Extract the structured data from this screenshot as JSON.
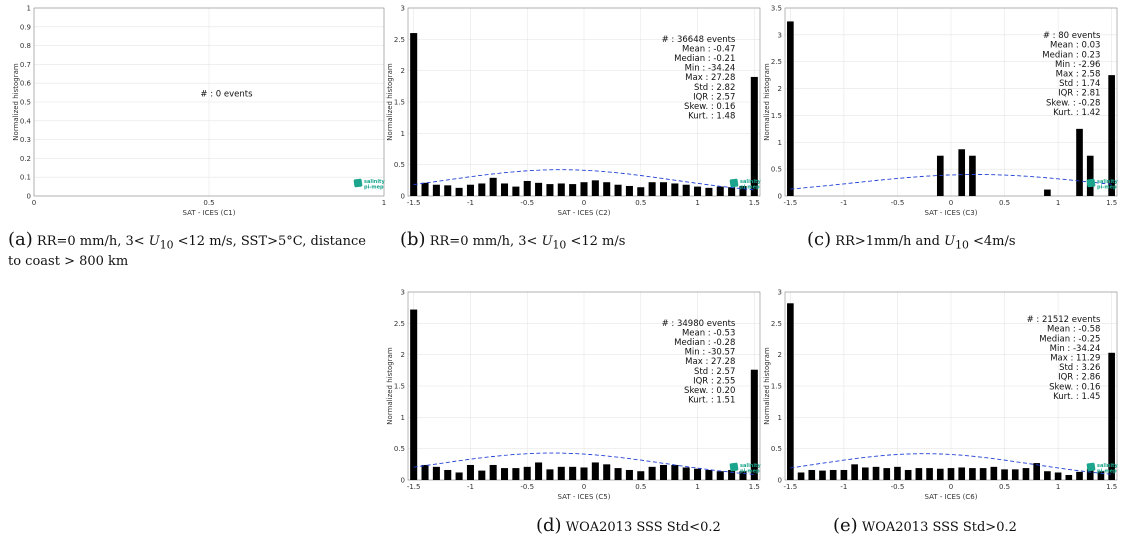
{
  "chart_data": [
    {
      "id": "C1",
      "type": "bar",
      "xlabel": "SAT - ICES (C1)",
      "ylabel": "Normalized histogram",
      "xlim": [
        0,
        1
      ],
      "ylim": [
        0,
        1
      ],
      "xticks": [
        0,
        0.5,
        1
      ],
      "xtick_labels": [
        "0",
        "0.5",
        "1"
      ],
      "yticks": [
        0,
        0.1,
        0.2,
        0.3,
        0.4,
        0.5,
        0.6,
        0.7,
        0.8,
        0.9,
        1
      ],
      "ytick_labels": [
        "0",
        "0.1",
        "0.2",
        "0.3",
        "0.4",
        "0.5",
        "0.6",
        "0.7",
        "0.8",
        "0.9",
        "1"
      ],
      "stats": [
        "#  : 0 events"
      ],
      "bars": [],
      "gauss": null,
      "logo_text": [
        "salinity",
        "pi-mep"
      ],
      "caption_tag": "(a)",
      "caption_text": "RR=0 mm/h, 3< U10 <12 m/s, SST>5°C, distance to coast > 800 km",
      "grid": true
    },
    {
      "id": "C2",
      "type": "bar",
      "xlabel": "SAT - ICES (C2)",
      "ylabel": "Normalized histogram",
      "xlim": [
        -1.55,
        1.55
      ],
      "ylim": [
        0,
        3
      ],
      "xticks": [
        -1.5,
        -1,
        -0.5,
        0,
        0.5,
        1,
        1.5
      ],
      "xtick_labels": [
        "-1.5",
        "-1",
        "-0.5",
        "0",
        "0.5",
        "1",
        "1.5"
      ],
      "yticks": [
        0,
        0.5,
        1,
        1.5,
        2,
        2.5,
        3
      ],
      "ytick_labels": [
        "0",
        "0.5",
        "1",
        "1.5",
        "2",
        "2.5",
        "3"
      ],
      "stats": [
        "#  : 36648 events",
        "Mean : -0.47",
        "Median : -0.21",
        "Min : -34.24",
        "Max : 27.28",
        "Std : 2.82",
        "IQR : 2.57",
        "Skew. : 0.16",
        "Kurt. : 1.48"
      ],
      "bars": [
        {
          "x": -1.5,
          "y": 2.6
        },
        {
          "x": -1.4,
          "y": 0.21
        },
        {
          "x": -1.3,
          "y": 0.18
        },
        {
          "x": -1.2,
          "y": 0.17
        },
        {
          "x": -1.1,
          "y": 0.13
        },
        {
          "x": -1.0,
          "y": 0.18
        },
        {
          "x": -0.9,
          "y": 0.2
        },
        {
          "x": -0.8,
          "y": 0.29
        },
        {
          "x": -0.7,
          "y": 0.2
        },
        {
          "x": -0.6,
          "y": 0.15
        },
        {
          "x": -0.5,
          "y": 0.24
        },
        {
          "x": -0.4,
          "y": 0.21
        },
        {
          "x": -0.3,
          "y": 0.19
        },
        {
          "x": -0.2,
          "y": 0.2
        },
        {
          "x": -0.1,
          "y": 0.19
        },
        {
          "x": 0.0,
          "y": 0.22
        },
        {
          "x": 0.1,
          "y": 0.25
        },
        {
          "x": 0.2,
          "y": 0.22
        },
        {
          "x": 0.3,
          "y": 0.18
        },
        {
          "x": 0.4,
          "y": 0.16
        },
        {
          "x": 0.5,
          "y": 0.14
        },
        {
          "x": 0.6,
          "y": 0.22
        },
        {
          "x": 0.7,
          "y": 0.22
        },
        {
          "x": 0.8,
          "y": 0.2
        },
        {
          "x": 0.9,
          "y": 0.18
        },
        {
          "x": 1.0,
          "y": 0.15
        },
        {
          "x": 1.1,
          "y": 0.13
        },
        {
          "x": 1.2,
          "y": 0.15
        },
        {
          "x": 1.3,
          "y": 0.14
        },
        {
          "x": 1.4,
          "y": 0.16
        },
        {
          "x": 1.5,
          "y": 1.9
        }
      ],
      "gauss": {
        "mean": -0.21,
        "peak": 0.42,
        "sigma": 1.0
      },
      "logo_text": [
        "salinity",
        "pi-mep"
      ],
      "caption_tag": "(b)",
      "caption_text": "RR=0 mm/h, 3< U10 <12 m/s",
      "grid": true
    },
    {
      "id": "C3",
      "type": "bar",
      "xlabel": "SAT - ICES (C3)",
      "ylabel": "Normalized histogram",
      "xlim": [
        -1.55,
        1.55
      ],
      "ylim": [
        0,
        3.5
      ],
      "xticks": [
        -1.5,
        -1,
        -0.5,
        0,
        0.5,
        1,
        1.5
      ],
      "xtick_labels": [
        "-1.5",
        "-1",
        "-0.5",
        "0",
        "0.5",
        "1",
        "1.5"
      ],
      "yticks": [
        0,
        0.5,
        1,
        1.5,
        2,
        2.5,
        3,
        3.5
      ],
      "ytick_labels": [
        "0",
        "0.5",
        "1",
        "1.5",
        "2",
        "2.5",
        "3",
        "3.5"
      ],
      "stats": [
        "#  : 80 events",
        "Mean : 0.03",
        "Median : 0.23",
        "Min : -2.96",
        "Max : 2.58",
        "Std : 1.74",
        "IQR : 2.81",
        "Skew. : -0.28",
        "Kurt. : 1.42"
      ],
      "bars": [
        {
          "x": -1.5,
          "y": 3.25
        },
        {
          "x": -0.1,
          "y": 0.75
        },
        {
          "x": 0.1,
          "y": 0.87
        },
        {
          "x": 0.2,
          "y": 0.75
        },
        {
          "x": 0.9,
          "y": 0.12
        },
        {
          "x": 1.2,
          "y": 1.25
        },
        {
          "x": 1.3,
          "y": 0.75
        },
        {
          "x": 1.5,
          "y": 2.25
        }
      ],
      "gauss": {
        "mean": 0.23,
        "peak": 0.4,
        "sigma": 1.15
      },
      "logo_text": [
        "salinity",
        "pi-mep"
      ],
      "caption_tag": "(c)",
      "caption_text": "RR>1mm/h and U10 <4m/s",
      "grid": true
    },
    {
      "id": "C5",
      "type": "bar",
      "xlabel": "SAT - ICES (C5)",
      "ylabel": "Normalized histogram",
      "xlim": [
        -1.55,
        1.55
      ],
      "ylim": [
        0,
        3
      ],
      "xticks": [
        -1.5,
        -1,
        -0.5,
        0,
        0.5,
        1,
        1.5
      ],
      "xtick_labels": [
        "-1.5",
        "-1",
        "-0.5",
        "0",
        "0.5",
        "1",
        "1.5"
      ],
      "yticks": [
        0,
        0.5,
        1,
        1.5,
        2,
        2.5,
        3
      ],
      "ytick_labels": [
        "0",
        "0.5",
        "1",
        "1.5",
        "2",
        "2.5",
        "3"
      ],
      "stats": [
        "#  : 34980 events",
        "Mean : -0.53",
        "Median : -0.28",
        "Min : -30.57",
        "Max : 27.28",
        "Std : 2.57",
        "IQR : 2.55",
        "Skew. : 0.20",
        "Kurt. : 1.51"
      ],
      "bars": [
        {
          "x": -1.5,
          "y": 2.72
        },
        {
          "x": -1.4,
          "y": 0.24
        },
        {
          "x": -1.3,
          "y": 0.21
        },
        {
          "x": -1.2,
          "y": 0.16
        },
        {
          "x": -1.1,
          "y": 0.12
        },
        {
          "x": -1.0,
          "y": 0.24
        },
        {
          "x": -0.9,
          "y": 0.15
        },
        {
          "x": -0.8,
          "y": 0.24
        },
        {
          "x": -0.7,
          "y": 0.19
        },
        {
          "x": -0.6,
          "y": 0.19
        },
        {
          "x": -0.5,
          "y": 0.21
        },
        {
          "x": -0.4,
          "y": 0.28
        },
        {
          "x": -0.3,
          "y": 0.17
        },
        {
          "x": -0.2,
          "y": 0.21
        },
        {
          "x": -0.1,
          "y": 0.21
        },
        {
          "x": 0.0,
          "y": 0.2
        },
        {
          "x": 0.1,
          "y": 0.28
        },
        {
          "x": 0.2,
          "y": 0.25
        },
        {
          "x": 0.3,
          "y": 0.19
        },
        {
          "x": 0.4,
          "y": 0.16
        },
        {
          "x": 0.5,
          "y": 0.14
        },
        {
          "x": 0.6,
          "y": 0.21
        },
        {
          "x": 0.7,
          "y": 0.24
        },
        {
          "x": 0.8,
          "y": 0.24
        },
        {
          "x": 0.9,
          "y": 0.2
        },
        {
          "x": 1.0,
          "y": 0.18
        },
        {
          "x": 1.1,
          "y": 0.16
        },
        {
          "x": 1.2,
          "y": 0.14
        },
        {
          "x": 1.3,
          "y": 0.16
        },
        {
          "x": 1.4,
          "y": 0.14
        },
        {
          "x": 1.5,
          "y": 1.76
        }
      ],
      "gauss": {
        "mean": -0.28,
        "peak": 0.43,
        "sigma": 1.0
      },
      "logo_text": [
        "salinity",
        "pi-mep"
      ],
      "caption_tag": "(d)",
      "caption_text": "WOA2013 SSS Std<0.2",
      "grid": true
    },
    {
      "id": "C6",
      "type": "bar",
      "xlabel": "SAT - ICES (C6)",
      "ylabel": "Normalized histogram",
      "xlim": [
        -1.55,
        1.55
      ],
      "ylim": [
        0,
        3
      ],
      "xticks": [
        -1.5,
        -1,
        -0.5,
        0,
        0.5,
        1,
        1.5
      ],
      "xtick_labels": [
        "-1.5",
        "-1",
        "-0.5",
        "0",
        "0.5",
        "1",
        "1.5"
      ],
      "yticks": [
        0,
        0.5,
        1,
        1.5,
        2,
        2.5,
        3
      ],
      "ytick_labels": [
        "0",
        "0.5",
        "1",
        "1.5",
        "2",
        "2.5",
        "3"
      ],
      "stats": [
        "#  : 21512 events",
        "Mean : -0.58",
        "Median : -0.25",
        "Min : -34.24",
        "Max : 11.29",
        "Std : 3.26",
        "IQR : 2.86",
        "Skew. : 0.16",
        "Kurt. : 1.45"
      ],
      "bars": [
        {
          "x": -1.5,
          "y": 2.82
        },
        {
          "x": -1.4,
          "y": 0.12
        },
        {
          "x": -1.3,
          "y": 0.16
        },
        {
          "x": -1.2,
          "y": 0.15
        },
        {
          "x": -1.1,
          "y": 0.16
        },
        {
          "x": -1.0,
          "y": 0.16
        },
        {
          "x": -0.9,
          "y": 0.25
        },
        {
          "x": -0.8,
          "y": 0.2
        },
        {
          "x": -0.7,
          "y": 0.21
        },
        {
          "x": -0.6,
          "y": 0.19
        },
        {
          "x": -0.5,
          "y": 0.21
        },
        {
          "x": -0.4,
          "y": 0.16
        },
        {
          "x": -0.3,
          "y": 0.19
        },
        {
          "x": -0.2,
          "y": 0.19
        },
        {
          "x": -0.1,
          "y": 0.18
        },
        {
          "x": 0.0,
          "y": 0.19
        },
        {
          "x": 0.1,
          "y": 0.2
        },
        {
          "x": 0.2,
          "y": 0.19
        },
        {
          "x": 0.3,
          "y": 0.19
        },
        {
          "x": 0.4,
          "y": 0.21
        },
        {
          "x": 0.5,
          "y": 0.17
        },
        {
          "x": 0.6,
          "y": 0.17
        },
        {
          "x": 0.7,
          "y": 0.19
        },
        {
          "x": 0.8,
          "y": 0.27
        },
        {
          "x": 0.9,
          "y": 0.14
        },
        {
          "x": 1.0,
          "y": 0.12
        },
        {
          "x": 1.1,
          "y": 0.08
        },
        {
          "x": 1.2,
          "y": 0.13
        },
        {
          "x": 1.3,
          "y": 0.18
        },
        {
          "x": 1.4,
          "y": 0.14
        },
        {
          "x": 1.5,
          "y": 2.03
        }
      ],
      "gauss": {
        "mean": -0.25,
        "peak": 0.42,
        "sigma": 1.0
      },
      "logo_text": [
        "salinity",
        "pi-mep"
      ],
      "caption_tag": "(e)",
      "caption_text": "WOA2013 SSS Std>0.2",
      "grid": true
    }
  ]
}
